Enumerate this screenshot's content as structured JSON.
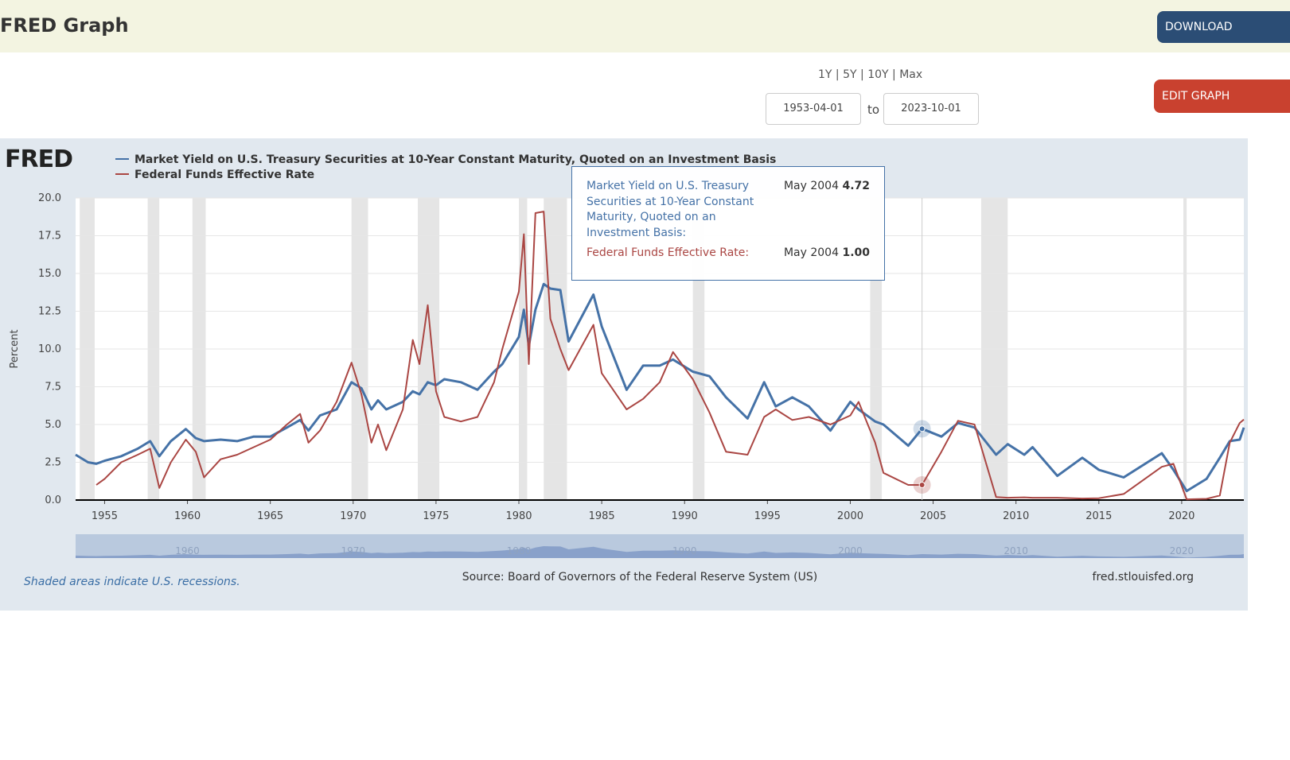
{
  "header": {
    "title": "FRED Graph",
    "download": "DOWNLOAD"
  },
  "controls": {
    "ranges": [
      "1Y",
      "5Y",
      "10Y",
      "Max"
    ],
    "start": "1953-04-01",
    "to": "to",
    "end": "2023-10-01",
    "edit": "EDIT GRAPH"
  },
  "logo": "FRED",
  "chart_data": {
    "type": "line",
    "y_label": "Percent",
    "x": [
      1953.25,
      1954.0,
      1954.5,
      1955.0,
      1956.0,
      1957.0,
      1957.75,
      1958.3,
      1959.0,
      1959.9,
      1960.5,
      1961.0,
      1962.0,
      1963.0,
      1964.0,
      1965.0,
      1966.0,
      1966.8,
      1967.3,
      1968.0,
      1969.0,
      1969.9,
      1970.5,
      1971.1,
      1971.5,
      1972.0,
      1973.0,
      1973.6,
      1974.0,
      1974.5,
      1975.0,
      1975.5,
      1976.5,
      1977.5,
      1978.5,
      1979.0,
      1980.0,
      1980.3,
      1980.6,
      1981.0,
      1981.5,
      1981.9,
      1982.5,
      1983.0,
      1984.5,
      1985.0,
      1986.5,
      1987.5,
      1988.5,
      1989.3,
      1990.5,
      1991.5,
      1992.5,
      1993.8,
      1994.8,
      1995.5,
      1996.5,
      1997.5,
      1998.8,
      2000.0,
      2000.5,
      2001.5,
      2002.0,
      2003.5,
      2004.33,
      2005.5,
      2006.5,
      2007.5,
      2008.8,
      2009.5,
      2010.5,
      2011.0,
      2012.5,
      2014.0,
      2015.0,
      2016.5,
      2018.8,
      2019.5,
      2020.3,
      2021.5,
      2022.3,
      2022.9,
      2023.5,
      2023.75
    ],
    "series": [
      {
        "name": "Market Yield on U.S. Treasury Securities at 10-Year Constant Maturity, Quoted on an Investment Basis",
        "color": "#4572a7",
        "values": [
          3.0,
          2.5,
          2.4,
          2.6,
          2.9,
          3.4,
          3.9,
          2.9,
          3.9,
          4.7,
          4.1,
          3.9,
          4.0,
          3.9,
          4.2,
          4.2,
          4.8,
          5.3,
          4.6,
          5.6,
          6.0,
          7.8,
          7.4,
          6.0,
          6.6,
          6.0,
          6.5,
          7.2,
          7.0,
          7.8,
          7.6,
          8.0,
          7.8,
          7.3,
          8.5,
          9.0,
          10.8,
          12.6,
          10.2,
          12.6,
          14.3,
          14.0,
          13.9,
          10.5,
          13.6,
          11.5,
          7.3,
          8.9,
          8.9,
          9.3,
          8.5,
          8.2,
          6.8,
          5.4,
          7.8,
          6.2,
          6.8,
          6.2,
          4.6,
          6.5,
          6.0,
          5.2,
          5.0,
          3.6,
          4.72,
          4.2,
          5.1,
          4.8,
          3.0,
          3.7,
          3.0,
          3.5,
          1.6,
          2.8,
          2.0,
          1.5,
          3.1,
          2.0,
          0.6,
          1.4,
          2.8,
          3.9,
          4.0,
          4.8
        ]
      },
      {
        "name": "Federal Funds Effective Rate",
        "color": "#aa4643",
        "values": [
          null,
          null,
          1.0,
          1.4,
          2.5,
          3.0,
          3.4,
          0.8,
          2.5,
          4.0,
          3.2,
          1.5,
          2.7,
          3.0,
          3.5,
          4.0,
          5.0,
          5.7,
          3.8,
          4.6,
          6.5,
          9.1,
          7.0,
          3.8,
          5.0,
          3.3,
          6.0,
          10.6,
          9.0,
          12.9,
          7.2,
          5.5,
          5.2,
          5.5,
          7.8,
          10.0,
          13.8,
          17.6,
          9.0,
          19.0,
          19.1,
          12.0,
          10.0,
          8.6,
          11.6,
          8.4,
          6.0,
          6.7,
          7.8,
          9.8,
          8.0,
          5.8,
          3.2,
          3.0,
          5.5,
          6.0,
          5.3,
          5.5,
          5.0,
          5.6,
          6.5,
          3.8,
          1.8,
          1.0,
          1.0,
          3.2,
          5.25,
          5.0,
          0.2,
          0.15,
          0.18,
          0.15,
          0.15,
          0.1,
          0.12,
          0.4,
          2.2,
          2.4,
          0.05,
          0.08,
          0.3,
          3.8,
          5.1,
          5.33
        ]
      }
    ],
    "xlim": [
      1953.25,
      2023.75
    ],
    "xticks": [
      1955,
      1960,
      1965,
      1970,
      1975,
      1980,
      1985,
      1990,
      1995,
      2000,
      2005,
      2010,
      2015,
      2020
    ],
    "ylim": [
      0,
      20
    ],
    "yticks": [
      {
        "value": 0,
        "label": "0.0"
      },
      2.5,
      {
        "value": 5,
        "label": "5.0"
      },
      7.5,
      {
        "value": 10,
        "label": "10.0"
      },
      12.5,
      {
        "value": 15,
        "label": "15.0"
      },
      17.5,
      {
        "value": 20,
        "label": "20.0"
      }
    ],
    "grid": true,
    "recessions": [
      [
        1953.5,
        1954.4
      ],
      [
        1957.6,
        1958.3
      ],
      [
        1960.3,
        1961.1
      ],
      [
        1969.9,
        1970.9
      ],
      [
        1973.9,
        1975.2
      ],
      [
        1980.0,
        1980.5
      ],
      [
        1981.5,
        1982.9
      ],
      [
        1990.5,
        1991.2
      ],
      [
        2001.2,
        2001.9
      ],
      [
        2007.9,
        2009.5
      ],
      [
        2020.1,
        2020.3
      ]
    ],
    "navigator_ticks": [
      1960,
      1970,
      1980,
      1990,
      2000,
      2010,
      2020
    ],
    "tooltip": {
      "index": 64,
      "rows": [
        {
          "label": "Market Yield on U.S. Treasury Securities at 10-Year Constant Maturity, Quoted on an Investment Basis:",
          "date": "May 2004",
          "value": "4.72"
        },
        {
          "label": "Federal Funds Effective Rate:",
          "date": "May 2004",
          "value": "1.00"
        }
      ]
    }
  },
  "footer": {
    "note": "Shaded areas indicate U.S. recessions.",
    "source": "Source: Board of Governors of the Federal Reserve System (US)",
    "site": "fred.stlouisfed.org"
  }
}
